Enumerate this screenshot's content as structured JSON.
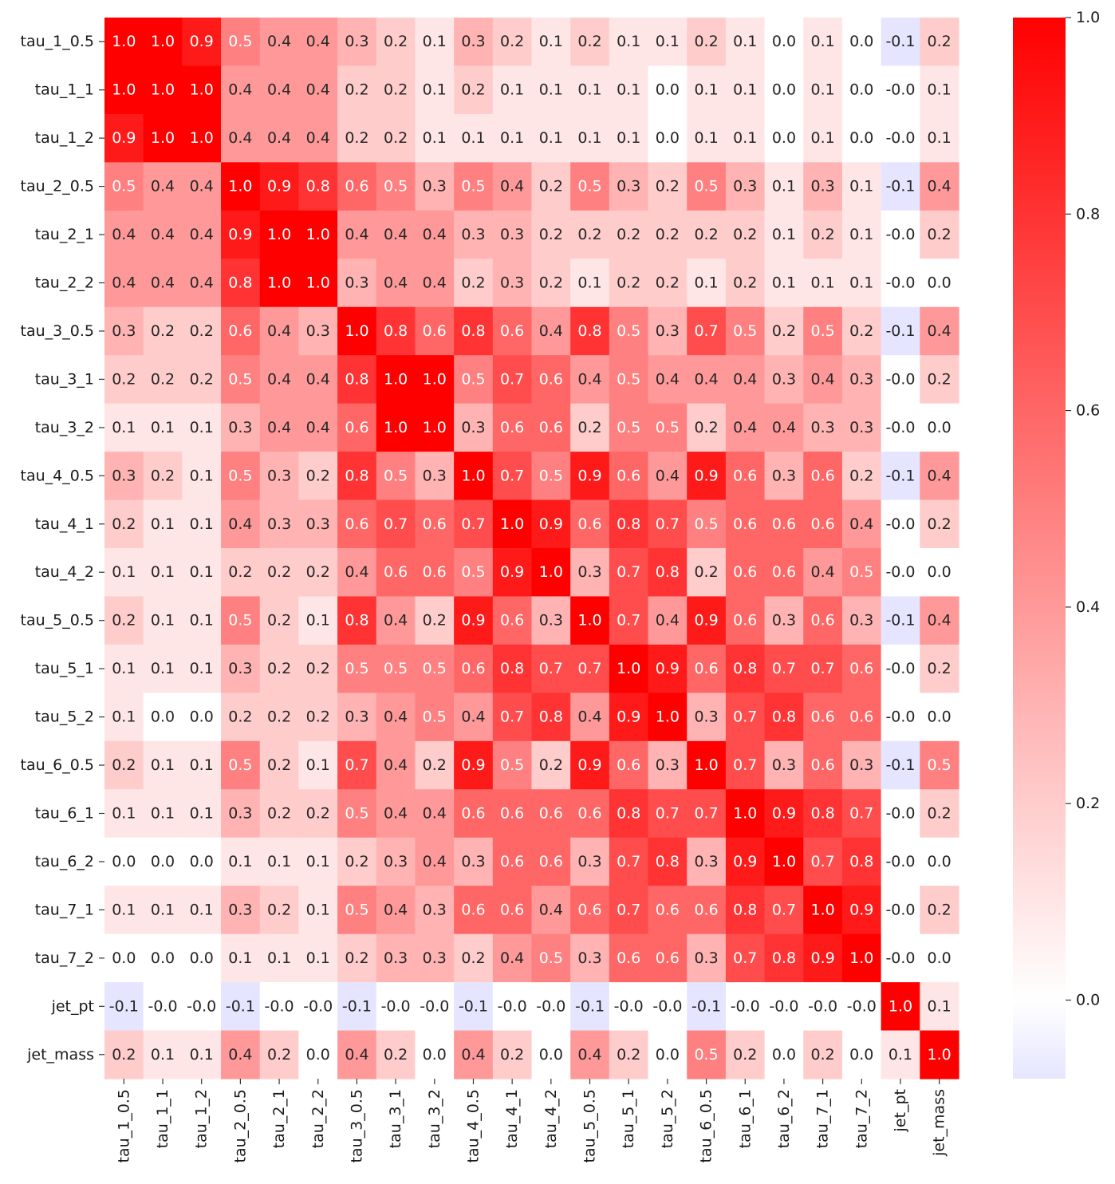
{
  "chart_data": {
    "type": "heatmap",
    "labels": [
      "tau_1_0.5",
      "tau_1_1",
      "tau_1_2",
      "tau_2_0.5",
      "tau_2_1",
      "tau_2_2",
      "tau_3_0.5",
      "tau_3_1",
      "tau_3_2",
      "tau_4_0.5",
      "tau_4_1",
      "tau_4_2",
      "tau_5_0.5",
      "tau_5_1",
      "tau_5_2",
      "tau_6_0.5",
      "tau_6_1",
      "tau_6_2",
      "tau_7_1",
      "tau_7_2",
      "jet_pt",
      "jet_mass"
    ],
    "matrix": [
      [
        1.0,
        1.0,
        0.9,
        0.5,
        0.4,
        0.4,
        0.3,
        0.2,
        0.1,
        0.3,
        0.2,
        0.1,
        0.2,
        0.1,
        0.1,
        0.2,
        0.1,
        0.0,
        0.1,
        0.0,
        -0.1,
        0.2
      ],
      [
        1.0,
        1.0,
        1.0,
        0.4,
        0.4,
        0.4,
        0.2,
        0.2,
        0.1,
        0.2,
        0.1,
        0.1,
        0.1,
        0.1,
        0.0,
        0.1,
        0.1,
        0.0,
        0.1,
        0.0,
        -0.0,
        0.1
      ],
      [
        0.9,
        1.0,
        1.0,
        0.4,
        0.4,
        0.4,
        0.2,
        0.2,
        0.1,
        0.1,
        0.1,
        0.1,
        0.1,
        0.1,
        0.0,
        0.1,
        0.1,
        0.0,
        0.1,
        0.0,
        -0.0,
        0.1
      ],
      [
        0.5,
        0.4,
        0.4,
        1.0,
        0.9,
        0.8,
        0.6,
        0.5,
        0.3,
        0.5,
        0.4,
        0.2,
        0.5,
        0.3,
        0.2,
        0.5,
        0.3,
        0.1,
        0.3,
        0.1,
        -0.1,
        0.4
      ],
      [
        0.4,
        0.4,
        0.4,
        0.9,
        1.0,
        1.0,
        0.4,
        0.4,
        0.4,
        0.3,
        0.3,
        0.2,
        0.2,
        0.2,
        0.2,
        0.2,
        0.2,
        0.1,
        0.2,
        0.1,
        -0.0,
        0.2
      ],
      [
        0.4,
        0.4,
        0.4,
        0.8,
        1.0,
        1.0,
        0.3,
        0.4,
        0.4,
        0.2,
        0.3,
        0.2,
        0.1,
        0.2,
        0.2,
        0.1,
        0.2,
        0.1,
        0.1,
        0.1,
        -0.0,
        0.0
      ],
      [
        0.3,
        0.2,
        0.2,
        0.6,
        0.4,
        0.3,
        1.0,
        0.8,
        0.6,
        0.8,
        0.6,
        0.4,
        0.8,
        0.5,
        0.3,
        0.7,
        0.5,
        0.2,
        0.5,
        0.2,
        -0.1,
        0.4
      ],
      [
        0.2,
        0.2,
        0.2,
        0.5,
        0.4,
        0.4,
        0.8,
        1.0,
        1.0,
        0.5,
        0.7,
        0.6,
        0.4,
        0.5,
        0.4,
        0.4,
        0.4,
        0.3,
        0.4,
        0.3,
        -0.0,
        0.2
      ],
      [
        0.1,
        0.1,
        0.1,
        0.3,
        0.4,
        0.4,
        0.6,
        1.0,
        1.0,
        0.3,
        0.6,
        0.6,
        0.2,
        0.5,
        0.5,
        0.2,
        0.4,
        0.4,
        0.3,
        0.3,
        -0.0,
        0.0
      ],
      [
        0.3,
        0.2,
        0.1,
        0.5,
        0.3,
        0.2,
        0.8,
        0.5,
        0.3,
        1.0,
        0.7,
        0.5,
        0.9,
        0.6,
        0.4,
        0.9,
        0.6,
        0.3,
        0.6,
        0.2,
        -0.1,
        0.4
      ],
      [
        0.2,
        0.1,
        0.1,
        0.4,
        0.3,
        0.3,
        0.6,
        0.7,
        0.6,
        0.7,
        1.0,
        0.9,
        0.6,
        0.8,
        0.7,
        0.5,
        0.6,
        0.6,
        0.6,
        0.4,
        -0.0,
        0.2
      ],
      [
        0.1,
        0.1,
        0.1,
        0.2,
        0.2,
        0.2,
        0.4,
        0.6,
        0.6,
        0.5,
        0.9,
        1.0,
        0.3,
        0.7,
        0.8,
        0.2,
        0.6,
        0.6,
        0.4,
        0.5,
        -0.0,
        0.0
      ],
      [
        0.2,
        0.1,
        0.1,
        0.5,
        0.2,
        0.1,
        0.8,
        0.4,
        0.2,
        0.9,
        0.6,
        0.3,
        1.0,
        0.7,
        0.4,
        0.9,
        0.6,
        0.3,
        0.6,
        0.3,
        -0.1,
        0.4
      ],
      [
        0.1,
        0.1,
        0.1,
        0.3,
        0.2,
        0.2,
        0.5,
        0.5,
        0.5,
        0.6,
        0.8,
        0.7,
        0.7,
        1.0,
        0.9,
        0.6,
        0.8,
        0.7,
        0.7,
        0.6,
        -0.0,
        0.2
      ],
      [
        0.1,
        0.0,
        0.0,
        0.2,
        0.2,
        0.2,
        0.3,
        0.4,
        0.5,
        0.4,
        0.7,
        0.8,
        0.4,
        0.9,
        1.0,
        0.3,
        0.7,
        0.8,
        0.6,
        0.6,
        -0.0,
        0.0
      ],
      [
        0.2,
        0.1,
        0.1,
        0.5,
        0.2,
        0.1,
        0.7,
        0.4,
        0.2,
        0.9,
        0.5,
        0.2,
        0.9,
        0.6,
        0.3,
        1.0,
        0.7,
        0.3,
        0.6,
        0.3,
        -0.1,
        0.5
      ],
      [
        0.1,
        0.1,
        0.1,
        0.3,
        0.2,
        0.2,
        0.5,
        0.4,
        0.4,
        0.6,
        0.6,
        0.6,
        0.6,
        0.8,
        0.7,
        0.7,
        1.0,
        0.9,
        0.8,
        0.7,
        -0.0,
        0.2
      ],
      [
        0.0,
        0.0,
        0.0,
        0.1,
        0.1,
        0.1,
        0.2,
        0.3,
        0.4,
        0.3,
        0.6,
        0.6,
        0.3,
        0.7,
        0.8,
        0.3,
        0.9,
        1.0,
        0.7,
        0.8,
        -0.0,
        0.0
      ],
      [
        0.1,
        0.1,
        0.1,
        0.3,
        0.2,
        0.1,
        0.5,
        0.4,
        0.3,
        0.6,
        0.6,
        0.4,
        0.6,
        0.7,
        0.6,
        0.6,
        0.8,
        0.7,
        1.0,
        0.9,
        -0.0,
        0.2
      ],
      [
        0.0,
        0.0,
        0.0,
        0.1,
        0.1,
        0.1,
        0.2,
        0.3,
        0.3,
        0.2,
        0.4,
        0.5,
        0.3,
        0.6,
        0.6,
        0.3,
        0.7,
        0.8,
        0.9,
        1.0,
        -0.0,
        0.0
      ],
      [
        -0.1,
        -0.0,
        -0.0,
        -0.1,
        -0.0,
        -0.0,
        -0.1,
        -0.0,
        -0.0,
        -0.1,
        -0.0,
        -0.0,
        -0.1,
        -0.0,
        -0.0,
        -0.1,
        -0.0,
        -0.0,
        -0.0,
        -0.0,
        1.0,
        0.1
      ],
      [
        0.2,
        0.1,
        0.1,
        0.4,
        0.2,
        0.0,
        0.4,
        0.2,
        0.0,
        0.4,
        0.2,
        0.0,
        0.4,
        0.2,
        0.0,
        0.5,
        0.2,
        0.0,
        0.2,
        0.0,
        0.1,
        1.0
      ]
    ],
    "title": "",
    "xlabel": "",
    "ylabel": "",
    "colorbar": {
      "vmin": -0.08,
      "vmax": 1.0,
      "ticks": [
        0.0,
        0.2,
        0.4,
        0.6,
        0.8,
        1.0
      ],
      "tick_labels": [
        "0.0",
        "0.2",
        "0.4",
        "0.6",
        "0.8",
        "1.0"
      ],
      "color_low": "#e5e5ff",
      "color_mid": "#ffffff",
      "color_high": "#ff0000"
    },
    "annotation_light_text": "#ffffff",
    "annotation_dark_text": "#262626"
  }
}
